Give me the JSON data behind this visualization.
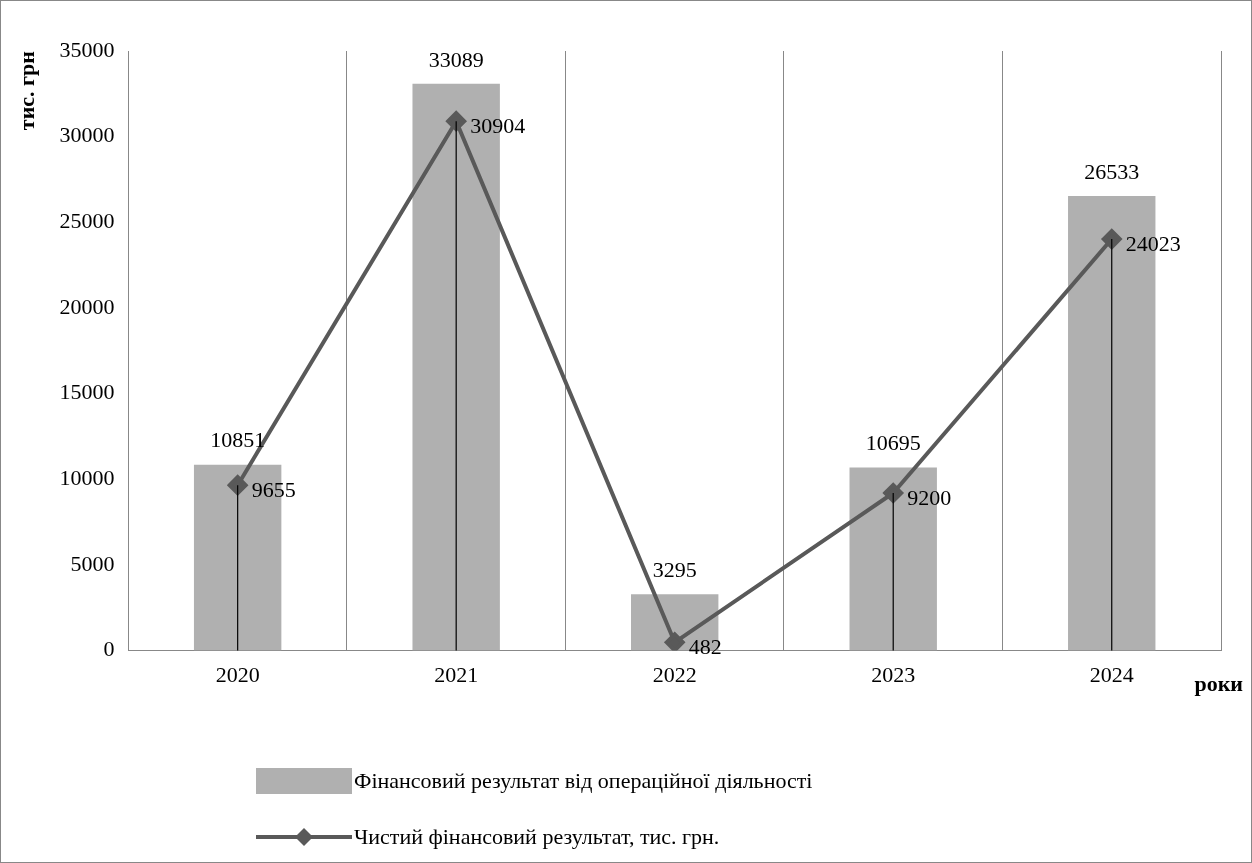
{
  "chart_data": {
    "type": "bar",
    "xlabel": "роки",
    "ylabel": "тис. грн",
    "categories": [
      "2020",
      "2021",
      "2022",
      "2023",
      "2024"
    ],
    "series": [
      {
        "name": "Фінансовий результат від операційної діяльності",
        "color": "#b0b0b0",
        "values": [
          10851,
          33089,
          3295,
          10695,
          26533
        ]
      },
      {
        "name": "Чистий фінансовий результат, тис. грн.",
        "type": "line",
        "color": "#595959",
        "marker": "diamond",
        "values": [
          9655,
          30904,
          482,
          9200,
          24023
        ],
        "errors": [
          [
            0,
            9655
          ],
          [
            0,
            30904
          ],
          null,
          [
            0,
            9200
          ],
          [
            0,
            24023
          ]
        ]
      }
    ],
    "ylim": [
      0,
      35000
    ],
    "yticks": [
      0,
      5000,
      10000,
      15000,
      20000,
      25000,
      30000,
      35000
    ],
    "grid": "x",
    "legend": "bottom",
    "data_labels": true
  }
}
